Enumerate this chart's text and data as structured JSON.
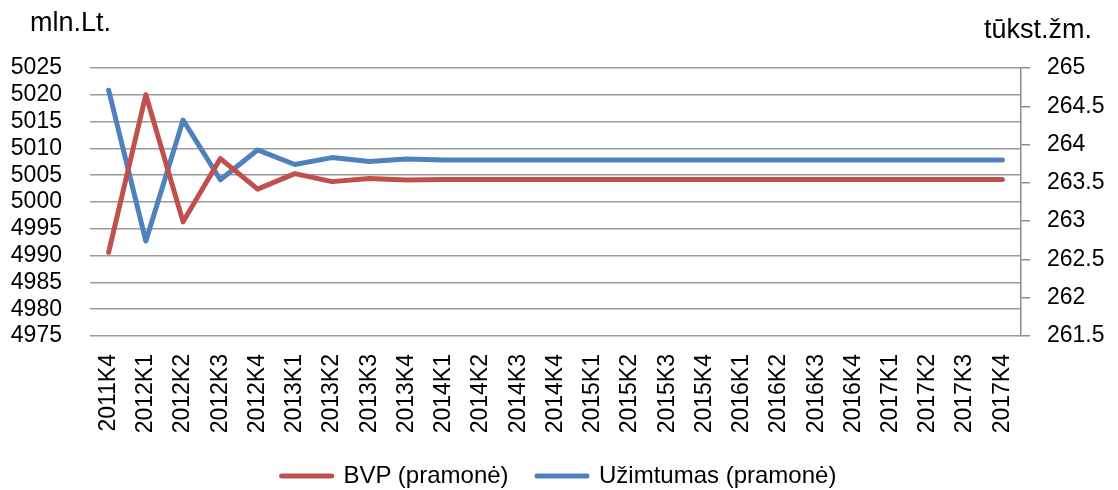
{
  "chart_data": {
    "type": "line",
    "ylabel": "mln.Lt.",
    "y2label": "tūkst.žm.",
    "categories": [
      "2011K4",
      "2012K1",
      "2012K2",
      "2012K3",
      "2012K4",
      "2013K1",
      "2013K2",
      "2013K3",
      "2013K4",
      "2014K1",
      "2014K2",
      "2014K3",
      "2014K4",
      "2015K1",
      "2015K2",
      "2015K3",
      "2015K4",
      "2016K1",
      "2016K2",
      "2016K3",
      "2016K4",
      "2017K1",
      "2017K2",
      "2017K3",
      "2017K4"
    ],
    "series": [
      {
        "name": "BVP (pramonė)",
        "color": "#c0504d",
        "values": [
          4990.6,
          5020,
          4996.3,
          5008.1,
          5002.4,
          5005.3,
          5003.8,
          5004.4,
          5004.1,
          5004.2,
          5004.2,
          5004.2,
          5004.2,
          5004.2,
          5004.2,
          5004.2,
          5004.2,
          5004.2,
          5004.2,
          5004.2,
          5004.2,
          5004.2,
          5004.2,
          5004.2,
          5004.2
        ]
      },
      {
        "name": "Užimtumas (pramonė)",
        "color": "#4f81bd",
        "axis": "y2",
        "values": [
          264.71,
          262.74,
          264.32,
          263.54,
          263.93,
          263.74,
          263.83,
          263.78,
          263.81,
          263.8,
          263.8,
          263.8,
          263.8,
          263.8,
          263.8,
          263.8,
          263.8,
          263.8,
          263.8,
          263.8,
          263.8,
          263.8,
          263.8,
          263.8,
          263.8
        ]
      }
    ],
    "ylim": [
      4975,
      5025
    ],
    "yticks": [
      4975,
      4980,
      4985,
      4990,
      4995,
      5000,
      5005,
      5010,
      5015,
      5020,
      5025
    ],
    "y2lim": [
      261.5,
      265
    ],
    "y2ticks": [
      261.5,
      262,
      262.5,
      263,
      263.5,
      264,
      264.5,
      265
    ],
    "grid": "y",
    "legend": "bottom",
    "marker": "none",
    "line_style": "solid"
  }
}
